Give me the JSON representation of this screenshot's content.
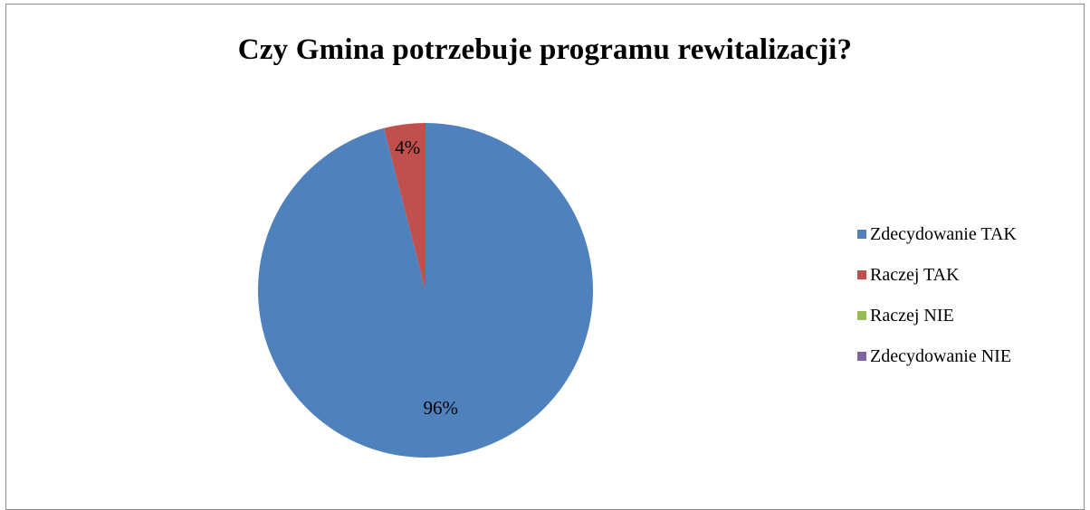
{
  "chart_data": {
    "type": "pie",
    "title": "Czy Gmina potrzebuje programu rewitalizacji?",
    "slices": [
      {
        "name": "Zdecydowanie TAK",
        "value": 96,
        "label": "96%",
        "color": "#4F81BD"
      },
      {
        "name": "Raczej TAK",
        "value": 4,
        "label": "4%",
        "color": "#C0504D"
      },
      {
        "name": "Raczej NIE",
        "value": 0,
        "label": "",
        "color": "#9BBB59"
      },
      {
        "name": "Zdecydowanie NIE",
        "value": 0,
        "label": "",
        "color": "#8064A2"
      }
    ],
    "legend_position": "right"
  }
}
